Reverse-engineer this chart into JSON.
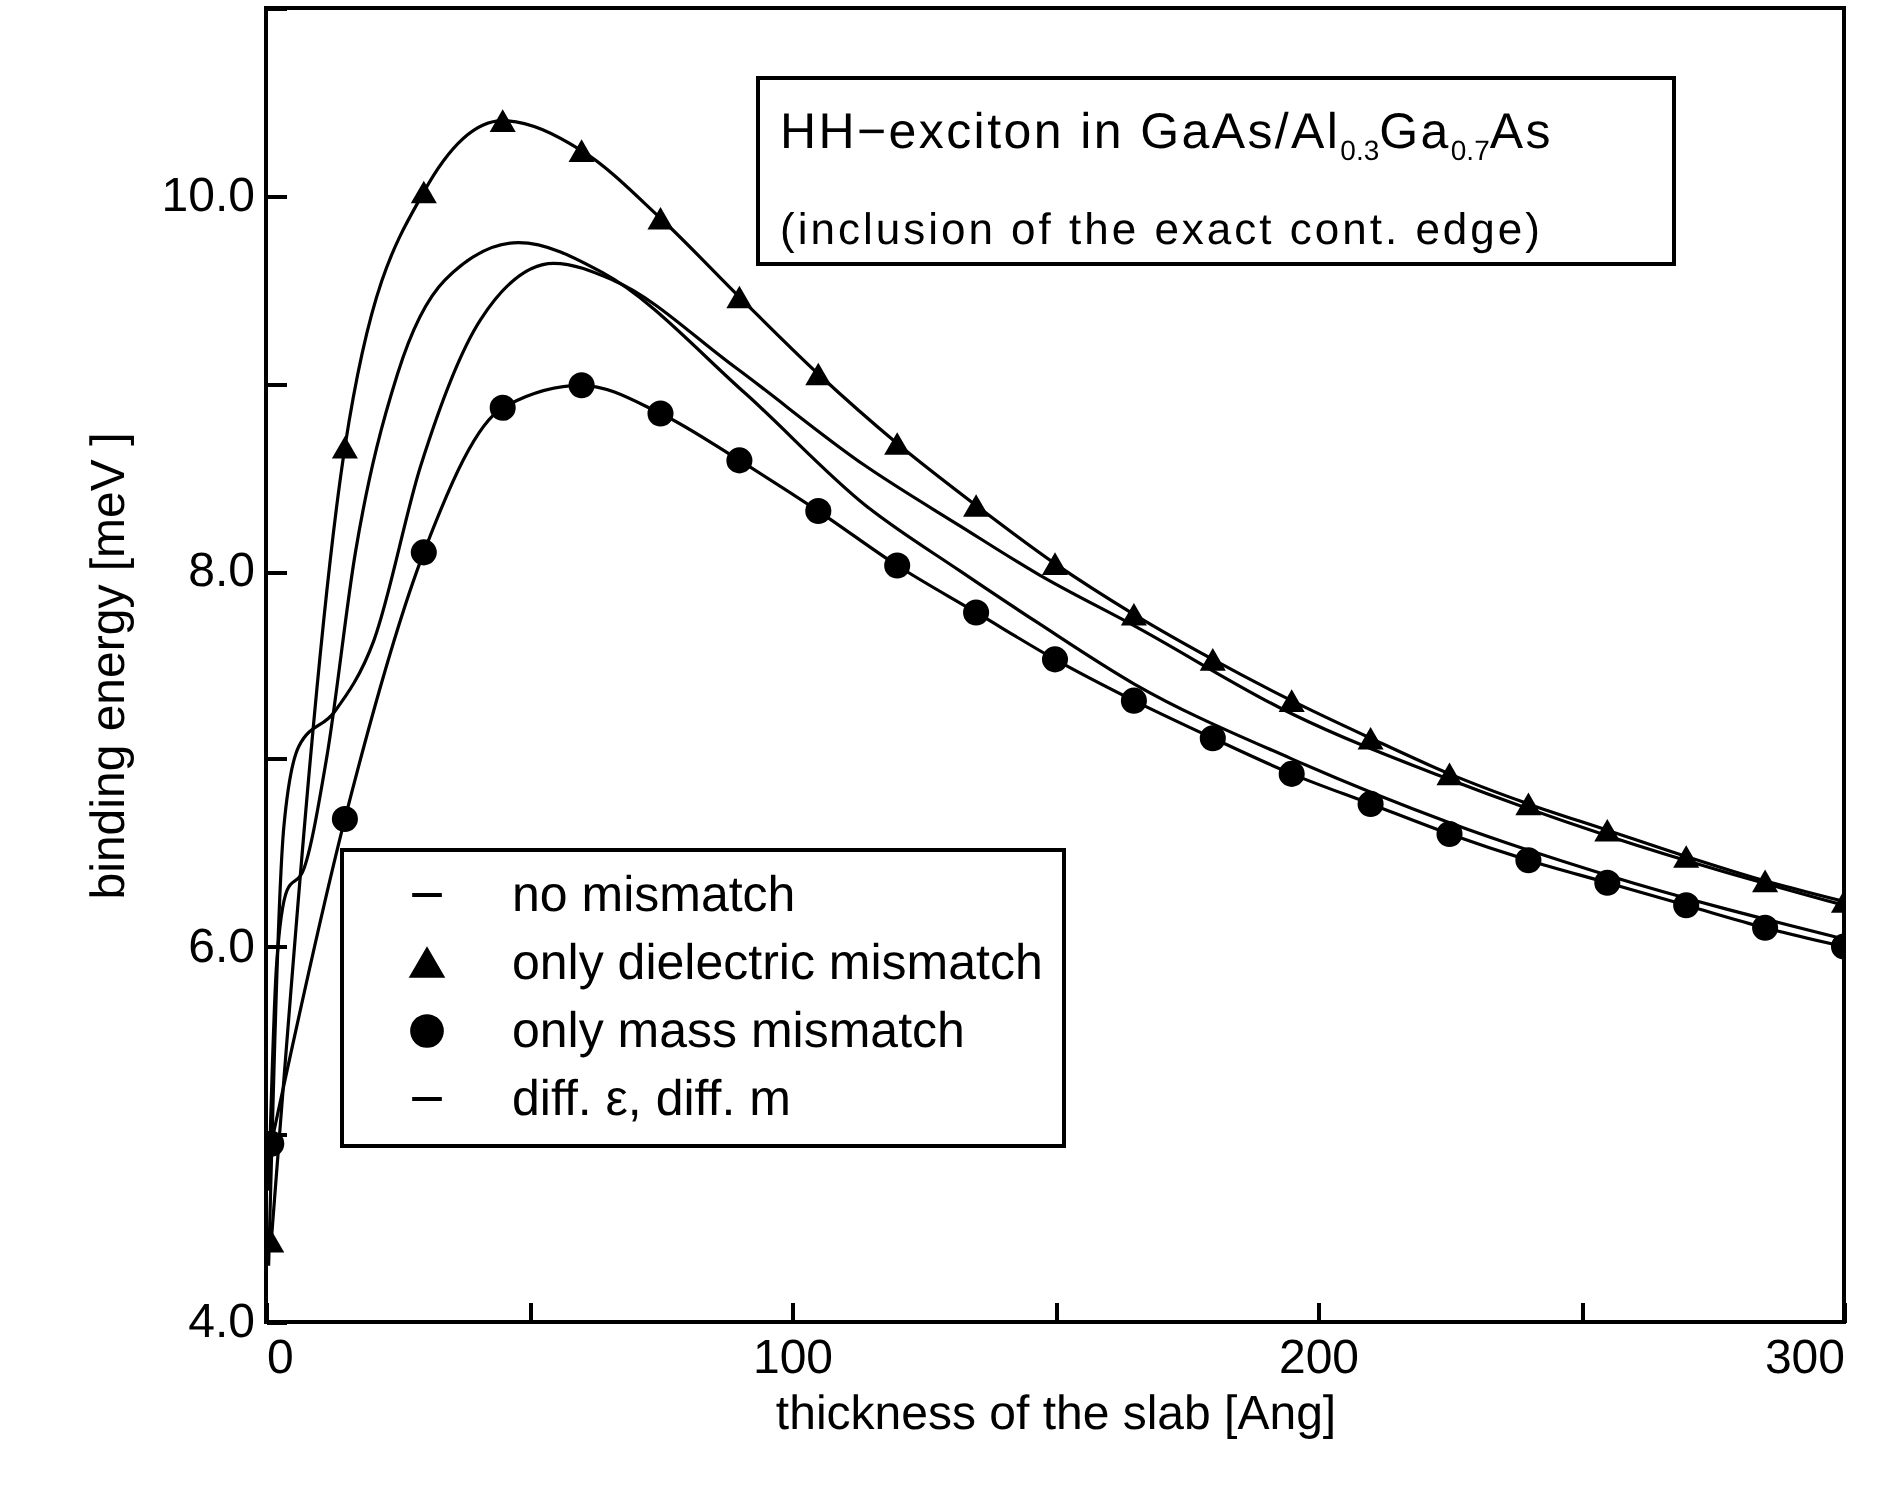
{
  "chart_data": {
    "type": "line",
    "xlabel": "thickness of the slab [Ang]",
    "ylabel": "binding energy [meV ]",
    "annotations": [
      "HH−exciton in GaAs/Al$_{0.3}$Ga$_{0.7}$As",
      "(inclusion of the exact cont. edge)"
    ],
    "xlim": [
      0,
      300
    ],
    "xticks": [
      0,
      {
        "value": 50,
        "label": null
      },
      100,
      {
        "value": 150,
        "label": null
      },
      200,
      {
        "value": 250,
        "label": null
      },
      300
    ],
    "ylim": [
      4,
      11
    ],
    "yticks": [
      {
        "value": 4,
        "label": "4.0"
      },
      {
        "value": 5,
        "label": null
      },
      {
        "value": 6,
        "label": "6.0"
      },
      {
        "value": 7,
        "label": null
      },
      {
        "value": 8,
        "label": "8.0"
      },
      {
        "value": 9,
        "label": null
      },
      {
        "value": 10,
        "label": "10.0"
      },
      {
        "value": 11,
        "label": null
      }
    ],
    "grid": false,
    "legend": "bottom left",
    "line_style": "solid",
    "series": [
      {
        "name": "no mismatch",
        "color": "#000000",
        "marker": "none",
        "x": [
          0.5,
          2,
          4,
          7,
          11.5,
          17,
          25,
          34,
          48,
          64,
          91,
          114,
          132,
          147,
          165,
          195,
          225,
          255,
          300
        ],
        "values": [
          4.7,
          5.9,
          6.3,
          6.4,
          7.0,
          8.1,
          9.05,
          9.55,
          9.75,
          9.59,
          8.95,
          8.35,
          8.0,
          7.72,
          7.4,
          7.0,
          6.66,
          6.38,
          6.04
        ]
      },
      {
        "name": "only dielectric mismatch",
        "color": "#000000",
        "marker": "triangle",
        "x": [
          1,
          15,
          30,
          45,
          60,
          75,
          90,
          105,
          120,
          135,
          150,
          165,
          180,
          195,
          210,
          225,
          240,
          255,
          270,
          285,
          300
        ],
        "values": [
          4.43,
          8.66,
          10.02,
          10.4,
          10.24,
          9.88,
          9.46,
          9.05,
          8.68,
          8.35,
          8.04,
          7.77,
          7.53,
          7.31,
          7.11,
          6.92,
          6.76,
          6.62,
          6.48,
          6.35,
          6.24
        ]
      },
      {
        "name": "only mass mismatch",
        "color": "#000000",
        "marker": "circle",
        "x": [
          1,
          15,
          30,
          45,
          60,
          75,
          90,
          105,
          120,
          135,
          150,
          165,
          180,
          195,
          210,
          225,
          240,
          255,
          270,
          285,
          300
        ],
        "values": [
          4.95,
          6.68,
          8.1,
          8.87,
          8.99,
          8.84,
          8.59,
          8.32,
          8.03,
          7.78,
          7.53,
          7.31,
          7.11,
          6.92,
          6.76,
          6.6,
          6.46,
          6.34,
          6.22,
          6.1,
          6.0
        ]
      },
      {
        "name": "diff. ε, diff. m",
        "color": "#000000",
        "marker": "none",
        "x": [
          0.5,
          3.4,
          6.3,
          13,
          20.5,
          29.4,
          40.8,
          54.7,
          66,
          89,
          114,
          132,
          147,
          165,
          195,
          225,
          255,
          300
        ],
        "values": [
          4.3,
          6.64,
          7.07,
          7.25,
          7.63,
          8.56,
          9.34,
          9.64,
          9.55,
          9.09,
          8.56,
          8.24,
          7.98,
          7.71,
          7.24,
          6.89,
          6.59,
          6.22
        ]
      }
    ]
  }
}
